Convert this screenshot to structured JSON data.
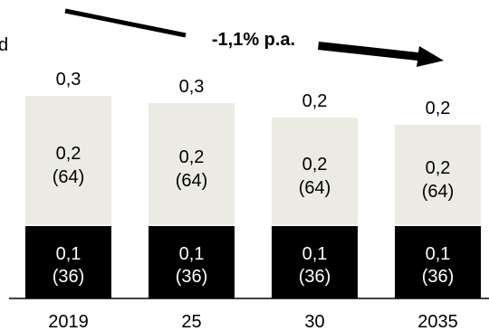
{
  "chart_data": {
    "type": "bar",
    "stacked": true,
    "categories": [
      "2019",
      "25",
      "30",
      "2035"
    ],
    "totals": [
      "0,3",
      "0,3",
      "0,2",
      "0,2"
    ],
    "series": [
      {
        "values": [
          0.1,
          0.1,
          0.1,
          0.1
        ],
        "value_labels": [
          "0,1",
          "0,1",
          "0,1",
          "0,1"
        ],
        "share_labels": [
          "(36)",
          "(36)",
          "(36)",
          "(36)"
        ],
        "color": "#000000",
        "text_color": "#ffffff"
      },
      {
        "values": [
          0.2,
          0.2,
          0.2,
          0.2
        ],
        "value_labels": [
          "0,2",
          "0,2",
          "0,2",
          "0,2"
        ],
        "share_labels": [
          "(64)",
          "(64)",
          "(64)",
          "(64)"
        ],
        "color": "#ecebe3",
        "text_color": "#000000"
      }
    ],
    "bar_totals_for_height": [
      0.28,
      0.27,
      0.25,
      0.24
    ],
    "annotation": "-1,1% p.a.",
    "edge_label": "d",
    "grid": false
  }
}
